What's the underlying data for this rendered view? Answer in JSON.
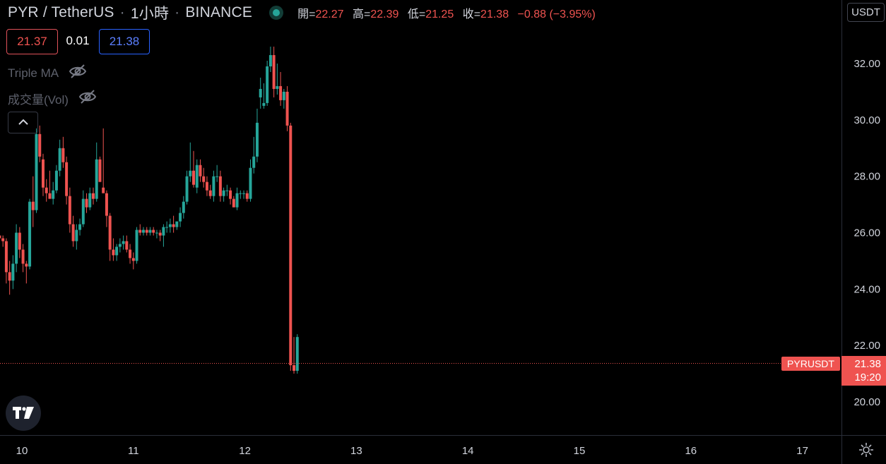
{
  "header": {
    "symbol": "PYR / TetherUS",
    "sep1": "·",
    "interval": "1小時",
    "sep2": "·",
    "exchange": "BINANCE",
    "open_label": "開=",
    "open": "22.27",
    "high_label": "高=",
    "high": "22.39",
    "low_label": "低=",
    "low": "21.25",
    "close_label": "收=",
    "close": "21.38",
    "change": "−0.88 (−3.95%)"
  },
  "trade": {
    "bid": "21.37",
    "spread": "0.01",
    "ask": "21.38"
  },
  "indicators": [
    {
      "label": "Triple MA"
    },
    {
      "label": "成交量(Vol)"
    }
  ],
  "price_scale": {
    "currency": "USDT"
  },
  "current": {
    "symbol": "PYRUSDT",
    "price": "21.38",
    "countdown": "19:20"
  },
  "colors": {
    "up": "#26a69a",
    "down": "#ef5350",
    "background": "#000000",
    "text": "#d1d4dc",
    "grid_border": "#2a2e39"
  },
  "icons": {
    "collapse": "chevron-up-icon",
    "logo": "tradingview-logo-icon",
    "hide": "eye-off-icon",
    "settings": "gear-icon"
  },
  "chart_data": {
    "type": "candlestick",
    "y_ticks": [
      "32.00",
      "30.00",
      "28.00",
      "26.00",
      "24.00",
      "22.00",
      "20.00"
    ],
    "x_ticks": [
      "10",
      "11",
      "12",
      "13",
      "14",
      "15",
      "16",
      "17"
    ],
    "ylim": [
      19.2,
      33.2
    ],
    "x_axis_span_days": [
      9.8,
      17.36
    ],
    "current_price": 21.38,
    "candles": [
      [
        9.8,
        25.9,
        26.1,
        25.6,
        25.8
      ],
      [
        9.83,
        25.8,
        25.9,
        25.5,
        25.7
      ],
      [
        9.86,
        25.7,
        25.8,
        24.2,
        24.6
      ],
      [
        9.89,
        24.6,
        25.0,
        23.8,
        24.3
      ],
      [
        9.92,
        24.3,
        25.2,
        24.0,
        24.9
      ],
      [
        9.95,
        24.9,
        26.3,
        24.6,
        26.0
      ],
      [
        9.98,
        26.0,
        26.2,
        25.1,
        25.4
      ],
      [
        10.01,
        25.4,
        25.6,
        24.6,
        24.9
      ],
      [
        10.04,
        24.9,
        25.0,
        24.2,
        24.8
      ],
      [
        10.07,
        24.8,
        27.2,
        24.7,
        27.1
      ],
      [
        10.1,
        27.1,
        28.0,
        26.2,
        26.8
      ],
      [
        10.13,
        26.8,
        29.7,
        26.7,
        29.5
      ],
      [
        10.16,
        29.5,
        29.8,
        28.5,
        28.7
      ],
      [
        10.19,
        28.6,
        28.8,
        27.3,
        27.6
      ],
      [
        10.22,
        27.6,
        27.9,
        27.1,
        27.4
      ],
      [
        10.25,
        27.4,
        28.2,
        27.3,
        27.2
      ],
      [
        10.28,
        27.2,
        27.8,
        27.0,
        27.5
      ],
      [
        10.31,
        27.5,
        28.4,
        27.4,
        28.2
      ],
      [
        10.34,
        28.2,
        29.3,
        28.0,
        29.0
      ],
      [
        10.37,
        29.0,
        29.4,
        28.3,
        28.5
      ],
      [
        10.4,
        28.5,
        28.7,
        27.0,
        27.3
      ],
      [
        10.43,
        27.3,
        27.6,
        26.0,
        26.3
      ],
      [
        10.46,
        26.3,
        26.6,
        25.5,
        25.7
      ],
      [
        10.49,
        25.7,
        26.3,
        25.4,
        26.1
      ],
      [
        10.52,
        26.1,
        26.5,
        25.9,
        26.3
      ],
      [
        10.55,
        26.3,
        27.5,
        26.2,
        27.2
      ],
      [
        10.58,
        27.2,
        27.4,
        26.7,
        26.9
      ],
      [
        10.61,
        26.9,
        27.6,
        26.8,
        27.4
      ],
      [
        10.64,
        27.4,
        27.6,
        27.0,
        27.2
      ],
      [
        10.67,
        27.2,
        29.2,
        27.1,
        28.6
      ],
      [
        10.7,
        28.6,
        28.7,
        27.8,
        27.8
      ],
      [
        10.73,
        27.6,
        29.7,
        27.5,
        27.4
      ],
      [
        10.76,
        27.4,
        27.5,
        26.2,
        26.6
      ],
      [
        10.79,
        26.6,
        26.7,
        25.0,
        25.4
      ],
      [
        10.82,
        25.4,
        25.8,
        25.0,
        25.2
      ],
      [
        10.85,
        25.2,
        25.6,
        25.0,
        25.5
      ],
      [
        10.88,
        25.5,
        25.8,
        25.3,
        25.6
      ],
      [
        10.91,
        25.6,
        25.9,
        25.4,
        25.7
      ],
      [
        10.94,
        25.7,
        25.9,
        25.3,
        25.4
      ],
      [
        10.97,
        25.4,
        25.6,
        24.9,
        25.1
      ],
      [
        11.0,
        25.1,
        25.3,
        24.7,
        25.0
      ],
      [
        11.03,
        25.0,
        26.2,
        24.9,
        26.1
      ],
      [
        11.06,
        26.1,
        26.3,
        25.9,
        26.0
      ],
      [
        11.09,
        26.0,
        26.2,
        25.9,
        26.1
      ],
      [
        11.12,
        26.1,
        26.2,
        25.9,
        26.0
      ],
      [
        11.15,
        26.0,
        26.2,
        25.9,
        26.1
      ],
      [
        11.18,
        26.1,
        26.2,
        25.9,
        26.0
      ],
      [
        11.21,
        26.0,
        26.1,
        25.8,
        26.0
      ],
      [
        11.24,
        26.0,
        26.1,
        25.7,
        25.9
      ],
      [
        11.27,
        25.9,
        26.3,
        25.5,
        26.2
      ],
      [
        11.3,
        26.2,
        26.4,
        26.0,
        26.2
      ],
      [
        11.33,
        26.2,
        26.5,
        26.0,
        26.3
      ],
      [
        11.36,
        26.3,
        26.6,
        26.0,
        26.2
      ],
      [
        11.39,
        26.2,
        26.4,
        26.1,
        26.4
      ],
      [
        11.42,
        26.4,
        26.9,
        26.2,
        26.7
      ],
      [
        11.45,
        26.7,
        27.3,
        26.5,
        27.1
      ],
      [
        11.48,
        27.1,
        28.2,
        27.0,
        28.0
      ],
      [
        11.51,
        28.0,
        29.2,
        27.8,
        28.2
      ],
      [
        11.54,
        28.2,
        28.9,
        27.6,
        27.7
      ],
      [
        11.57,
        27.6,
        28.6,
        27.4,
        28.4
      ],
      [
        11.6,
        28.4,
        28.6,
        27.8,
        28.0
      ],
      [
        11.63,
        28.0,
        28.3,
        27.6,
        27.8
      ],
      [
        11.66,
        27.8,
        28.0,
        27.3,
        27.5
      ],
      [
        11.69,
        27.5,
        27.7,
        27.2,
        27.3
      ],
      [
        11.72,
        27.3,
        28.2,
        27.1,
        28.0
      ],
      [
        11.75,
        28.0,
        28.4,
        27.8,
        28.0
      ],
      [
        11.78,
        28.0,
        28.2,
        27.1,
        27.3
      ],
      [
        11.81,
        27.3,
        27.6,
        27.1,
        27.5
      ],
      [
        11.84,
        27.5,
        27.7,
        27.3,
        27.5
      ],
      [
        11.87,
        27.5,
        27.6,
        27.0,
        27.2
      ],
      [
        11.9,
        27.2,
        27.3,
        26.9,
        26.9
      ],
      [
        11.93,
        26.9,
        27.6,
        26.8,
        27.4
      ],
      [
        11.96,
        27.4,
        27.5,
        27.2,
        27.4
      ],
      [
        11.99,
        27.4,
        27.5,
        27.2,
        27.4
      ],
      [
        12.02,
        27.4,
        27.5,
        27.1,
        27.2
      ],
      [
        12.05,
        27.2,
        28.6,
        27.1,
        28.3
      ],
      [
        12.08,
        28.3,
        29.4,
        28.1,
        28.7
      ],
      [
        12.11,
        28.7,
        30.4,
        28.5,
        29.9
      ],
      [
        12.14,
        30.8,
        31.5,
        30.4,
        31.1
      ],
      [
        12.17,
        30.5,
        31.3,
        30.4,
        30.6
      ],
      [
        12.2,
        30.6,
        32.1,
        30.5,
        31.9
      ],
      [
        12.23,
        31.9,
        32.6,
        31.7,
        32.3
      ],
      [
        12.26,
        32.3,
        32.6,
        30.8,
        31.1
      ],
      [
        12.29,
        31.1,
        32.0,
        30.9,
        31.2
      ],
      [
        12.32,
        31.2,
        31.7,
        30.5,
        30.7
      ],
      [
        12.35,
        30.7,
        31.1,
        30.4,
        31.0
      ],
      [
        12.38,
        31.0,
        31.2,
        29.6,
        29.8
      ],
      [
        12.41,
        29.8,
        29.9,
        21.1,
        21.3
      ],
      [
        12.44,
        21.3,
        22.3,
        21.0,
        21.1
      ],
      [
        12.47,
        21.1,
        22.4,
        21.0,
        22.3
      ]
    ]
  }
}
